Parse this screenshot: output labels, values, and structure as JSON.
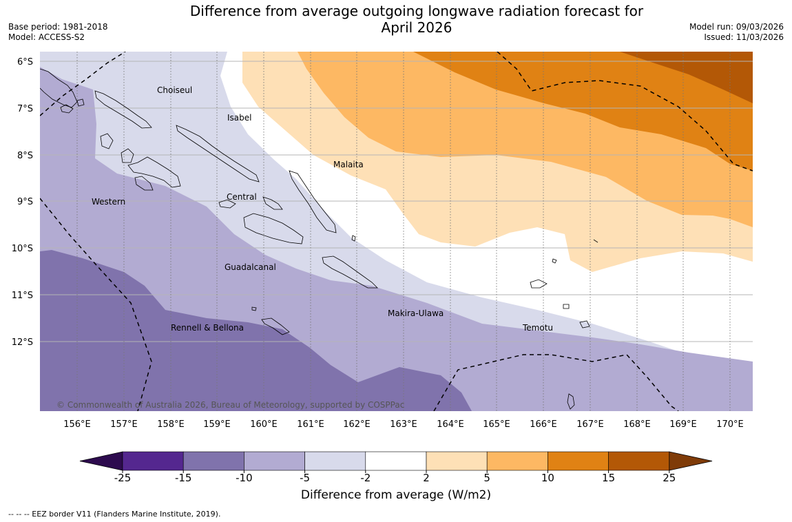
{
  "title": {
    "line1": "Difference from average outgoing longwave radiation forecast for",
    "line2": "April 2026"
  },
  "meta_left": {
    "base_period": "Base period: 1981-2018",
    "model": "Model: ACCESS-S2"
  },
  "meta_right": {
    "model_run": "Model run: 09/03/2026",
    "issued": "Issued: 11/03/2026"
  },
  "map": {
    "lat_labels": [
      "6°S",
      "7°S",
      "8°S",
      "9°S",
      "10°S",
      "11°S",
      "12°S"
    ],
    "lon_labels": [
      "156°E",
      "157°E",
      "158°E",
      "159°E",
      "160°E",
      "161°E",
      "162°E",
      "163°E",
      "164°E",
      "165°E",
      "166°E",
      "167°E",
      "168°E",
      "169°E",
      "170°E"
    ],
    "regions": {
      "choiseul": "Choiseul",
      "isabel": "Isabel",
      "malaita": "Malaita",
      "central": "Central",
      "western": "Western",
      "guadalcanal": "Guadalcanal",
      "makira": "Makira-Ulawa",
      "temotu": "Temotu",
      "rennell": "Rennell & Bellona"
    },
    "copyright": "© Commonwealth of Australia 2026, Bureau of Meteorology, supported by COSPPac"
  },
  "colorbar": {
    "ticks": [
      "-25",
      "-15",
      "-10",
      "-5",
      "-2",
      "2",
      "5",
      "10",
      "15",
      "25"
    ],
    "colors": {
      "lt_25": "#2d0b4e",
      "c_25_15": "#54278f",
      "c_15_10": "#8073ac",
      "c_10_5": "#b2abd2",
      "c_5_2": "#d8daeb",
      "c_2_2": "#ffffff",
      "c_2_5": "#fee0b6",
      "c_5_10": "#fdb863",
      "c_10_15": "#e08214",
      "c_15_25": "#b35806",
      "gt_25": "#7f3b08"
    },
    "title": "Difference from average (W/m2)"
  },
  "footer": "--  --  -- EEZ border V11 (Flanders Marine Institute, 2019)."
}
